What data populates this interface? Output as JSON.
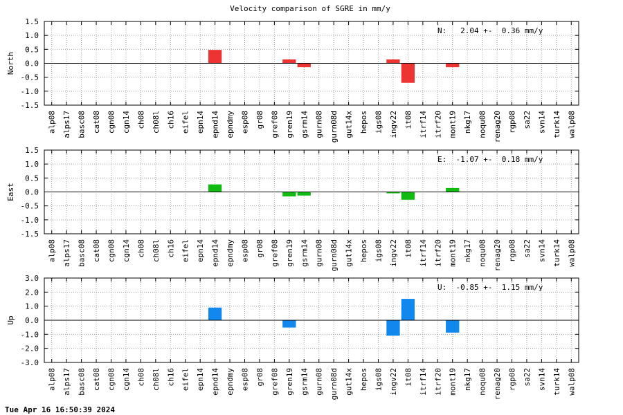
{
  "title": "Velocity comparison of SGRE in mm/y",
  "footer": "Tue Apr 16 16:50:39 2024",
  "chart_data": [
    {
      "type": "bar",
      "ylabel": "North",
      "annotation": "N:   2.04 +-  0.36 mm/y",
      "color": "#ee3333",
      "ylim": [
        -1.5,
        1.5
      ],
      "yticks": [
        -1.5,
        -1.0,
        -0.5,
        0.0,
        0.5,
        1.0,
        1.5
      ],
      "ytick_labels": [
        "-1.5",
        "-1.0",
        "-0.5",
        "0.0",
        "0.5",
        "1.0",
        "1.5"
      ],
      "grid": true,
      "categories": [
        "alp08",
        "alps17",
        "basc08",
        "cat08",
        "cgn08",
        "cgn14",
        "ch08",
        "ch08l",
        "ch16",
        "eifel",
        "epn14",
        "epnd14",
        "epndmy",
        "esp08",
        "gr08",
        "gref08",
        "gren19",
        "gsrm14",
        "gurn08",
        "gurn08d",
        "gut14x",
        "hepos",
        "igs08",
        "ingv22",
        "it08",
        "itrf14",
        "itrf20",
        "mont19",
        "nkg17",
        "noqu08",
        "renag20",
        "rgp08",
        "sa22",
        "svn14",
        "turk14",
        "walp08"
      ],
      "values": [
        0,
        0,
        0,
        0,
        0,
        0,
        0,
        0,
        0,
        0,
        0,
        0.48,
        0,
        0,
        0,
        0,
        0.14,
        -0.14,
        0,
        0,
        0,
        0,
        0,
        0.14,
        -0.7,
        0,
        0,
        -0.14,
        0,
        0,
        0,
        0,
        0,
        0,
        0,
        0
      ]
    },
    {
      "type": "bar",
      "ylabel": "East",
      "annotation": "E:  -1.07 +-  0.18 mm/y",
      "color": "#11bb11",
      "ylim": [
        -1.5,
        1.5
      ],
      "yticks": [
        -1.5,
        -1.0,
        -0.5,
        0.0,
        0.5,
        1.0,
        1.5
      ],
      "ytick_labels": [
        "-1.5",
        "-1.0",
        "-0.5",
        "0.0",
        "0.5",
        "1.0",
        "1.5"
      ],
      "grid": true,
      "categories": [
        "alp08",
        "alps17",
        "basc08",
        "cat08",
        "cgn08",
        "cgn14",
        "ch08",
        "ch08l",
        "ch16",
        "eifel",
        "epn14",
        "epnd14",
        "epndmy",
        "esp08",
        "gr08",
        "gref08",
        "gren19",
        "gsrm14",
        "gurn08",
        "gurn08d",
        "gut14x",
        "hepos",
        "igs08",
        "ingv22",
        "it08",
        "itrf14",
        "itrf20",
        "mont19",
        "nkg17",
        "noqu08",
        "renag20",
        "rgp08",
        "sa22",
        "svn14",
        "turk14",
        "walp08"
      ],
      "values": [
        0,
        0,
        0,
        0,
        0,
        0,
        0,
        0,
        0,
        0,
        0,
        0.27,
        0,
        0,
        0,
        0,
        -0.16,
        -0.13,
        0,
        0,
        0,
        0,
        0,
        -0.05,
        -0.28,
        0,
        0,
        0.14,
        0,
        0,
        0,
        0,
        0,
        0,
        0,
        0
      ]
    },
    {
      "type": "bar",
      "ylabel": "Up",
      "annotation": "U:  -0.85 +-  1.15 mm/y",
      "color": "#1188ee",
      "ylim": [
        -3.0,
        3.0
      ],
      "yticks": [
        -3.0,
        -2.0,
        -1.0,
        0.0,
        1.0,
        2.0,
        3.0
      ],
      "ytick_labels": [
        "-3.0",
        "-2.0",
        "-1.0",
        "0.0",
        "1.0",
        "2.0",
        "3.0"
      ],
      "grid": true,
      "categories": [
        "alp08",
        "alps17",
        "basc08",
        "cat08",
        "cgn08",
        "cgn14",
        "ch08",
        "ch08l",
        "ch16",
        "eifel",
        "epn14",
        "epnd14",
        "epndmy",
        "esp08",
        "gr08",
        "gref08",
        "gren19",
        "gsrm14",
        "gurn08",
        "gurn08d",
        "gut14x",
        "hepos",
        "igs08",
        "ingv22",
        "it08",
        "itrf14",
        "itrf20",
        "mont19",
        "nkg17",
        "noqu08",
        "renag20",
        "rgp08",
        "sa22",
        "svn14",
        "turk14",
        "walp08"
      ],
      "values": [
        0,
        0,
        0,
        0,
        0,
        0,
        0,
        0,
        0,
        0,
        0,
        0.9,
        0,
        0,
        0,
        0,
        -0.52,
        0,
        0,
        0,
        0,
        0,
        0,
        -1.1,
        1.52,
        0,
        0,
        -0.88,
        0,
        0,
        0,
        0,
        0,
        0,
        0,
        0
      ]
    }
  ]
}
